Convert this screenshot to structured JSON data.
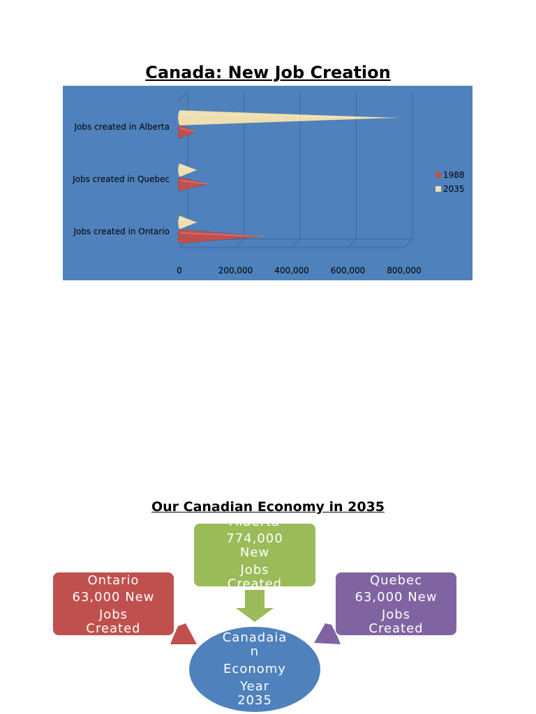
{
  "page": {
    "chart_title": "Canada: New Job Creation",
    "diagram_title": "Our Canadian Economy in 2035"
  },
  "chart_data": {
    "type": "bar",
    "orientation": "horizontal",
    "style": "3d-cone",
    "categories": [
      "Jobs created in Ontario",
      "Jobs created in Quebec",
      "Jobs created in Alberta"
    ],
    "series": [
      {
        "name": "1988",
        "color": "#c0504d",
        "values": [
          300000,
          105000,
          60000
        ]
      },
      {
        "name": "2035",
        "color": "#eedfb0",
        "values": [
          63000,
          63000,
          774000
        ]
      }
    ],
    "xlim": [
      0,
      800000
    ],
    "xticks": [
      "0",
      "200,000",
      "400,000",
      "600,000",
      "800,000"
    ],
    "grid": true,
    "legend": "right",
    "background": "#4f81bd"
  },
  "diagram": {
    "ontario": {
      "lines": [
        "Ontario",
        "63,000 New",
        "Jobs",
        "Created"
      ],
      "color": "#c0504d"
    },
    "alberta": {
      "lines": [
        "Alberta",
        "774,000",
        "New",
        "Jobs",
        "Created"
      ],
      "color": "#9bbb59"
    },
    "quebec": {
      "lines": [
        "Quebec",
        "63,000 New",
        "Jobs",
        "Created"
      ],
      "color": "#8064a2"
    },
    "center": {
      "lines": [
        "Canadaia",
        "n",
        "Economy",
        "Year",
        "2035"
      ],
      "color": "#4f81bd"
    }
  }
}
